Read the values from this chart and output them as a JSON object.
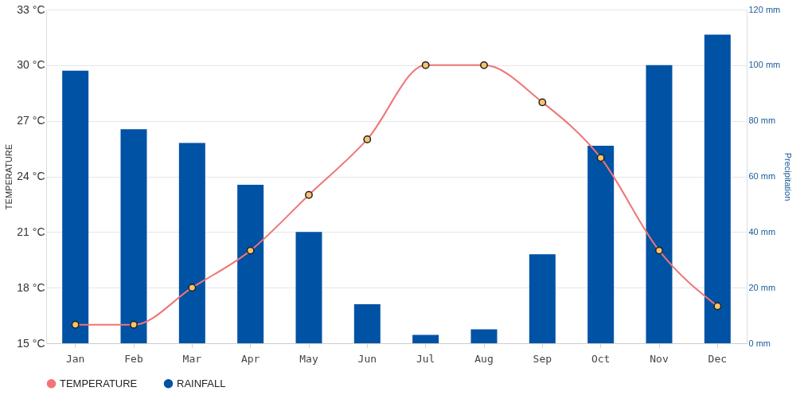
{
  "chart_data": {
    "type": "bar",
    "categories": [
      "Jan",
      "Feb",
      "Mar",
      "Apr",
      "May",
      "Jun",
      "Jul",
      "Aug",
      "Sep",
      "Oct",
      "Nov",
      "Dec"
    ],
    "series": [
      {
        "name": "TEMPERATURE",
        "type": "line",
        "color": "#f07575",
        "values": [
          16,
          16,
          18,
          20,
          23,
          26,
          30,
          30,
          28,
          25,
          20,
          17
        ]
      },
      {
        "name": "RAINFALL",
        "axis": "y2",
        "color": "#0052a5",
        "values": [
          98,
          77,
          72,
          57,
          40,
          14,
          3,
          5,
          32,
          71,
          100,
          111
        ]
      }
    ],
    "ylabel": "TEMPERATURE",
    "y2label": "Precipitation",
    "ylim": [
      15,
      33
    ],
    "yticks": [
      {
        "value": 15,
        "label": "15 °C"
      },
      {
        "value": 18,
        "label": "18 °C"
      },
      {
        "value": 21,
        "label": "21 °C"
      },
      {
        "value": 24,
        "label": "24 °C"
      },
      {
        "value": 27,
        "label": "27 °C"
      },
      {
        "value": 30,
        "label": "30 °C"
      },
      {
        "value": 33,
        "label": "33 °C"
      }
    ],
    "y2lim": [
      0,
      120
    ],
    "y2ticks": [
      {
        "value": 0,
        "label": "0 mm"
      },
      {
        "value": 20,
        "label": "20 mm"
      },
      {
        "value": 40,
        "label": "40 mm"
      },
      {
        "value": 60,
        "label": "60 mm"
      },
      {
        "value": 80,
        "label": "80 mm"
      },
      {
        "value": 100,
        "label": "100 mm"
      },
      {
        "value": 120,
        "label": "120 mm"
      }
    ],
    "grid": "y",
    "legend": "bottom",
    "marker": "circle",
    "line_style": "solid"
  }
}
